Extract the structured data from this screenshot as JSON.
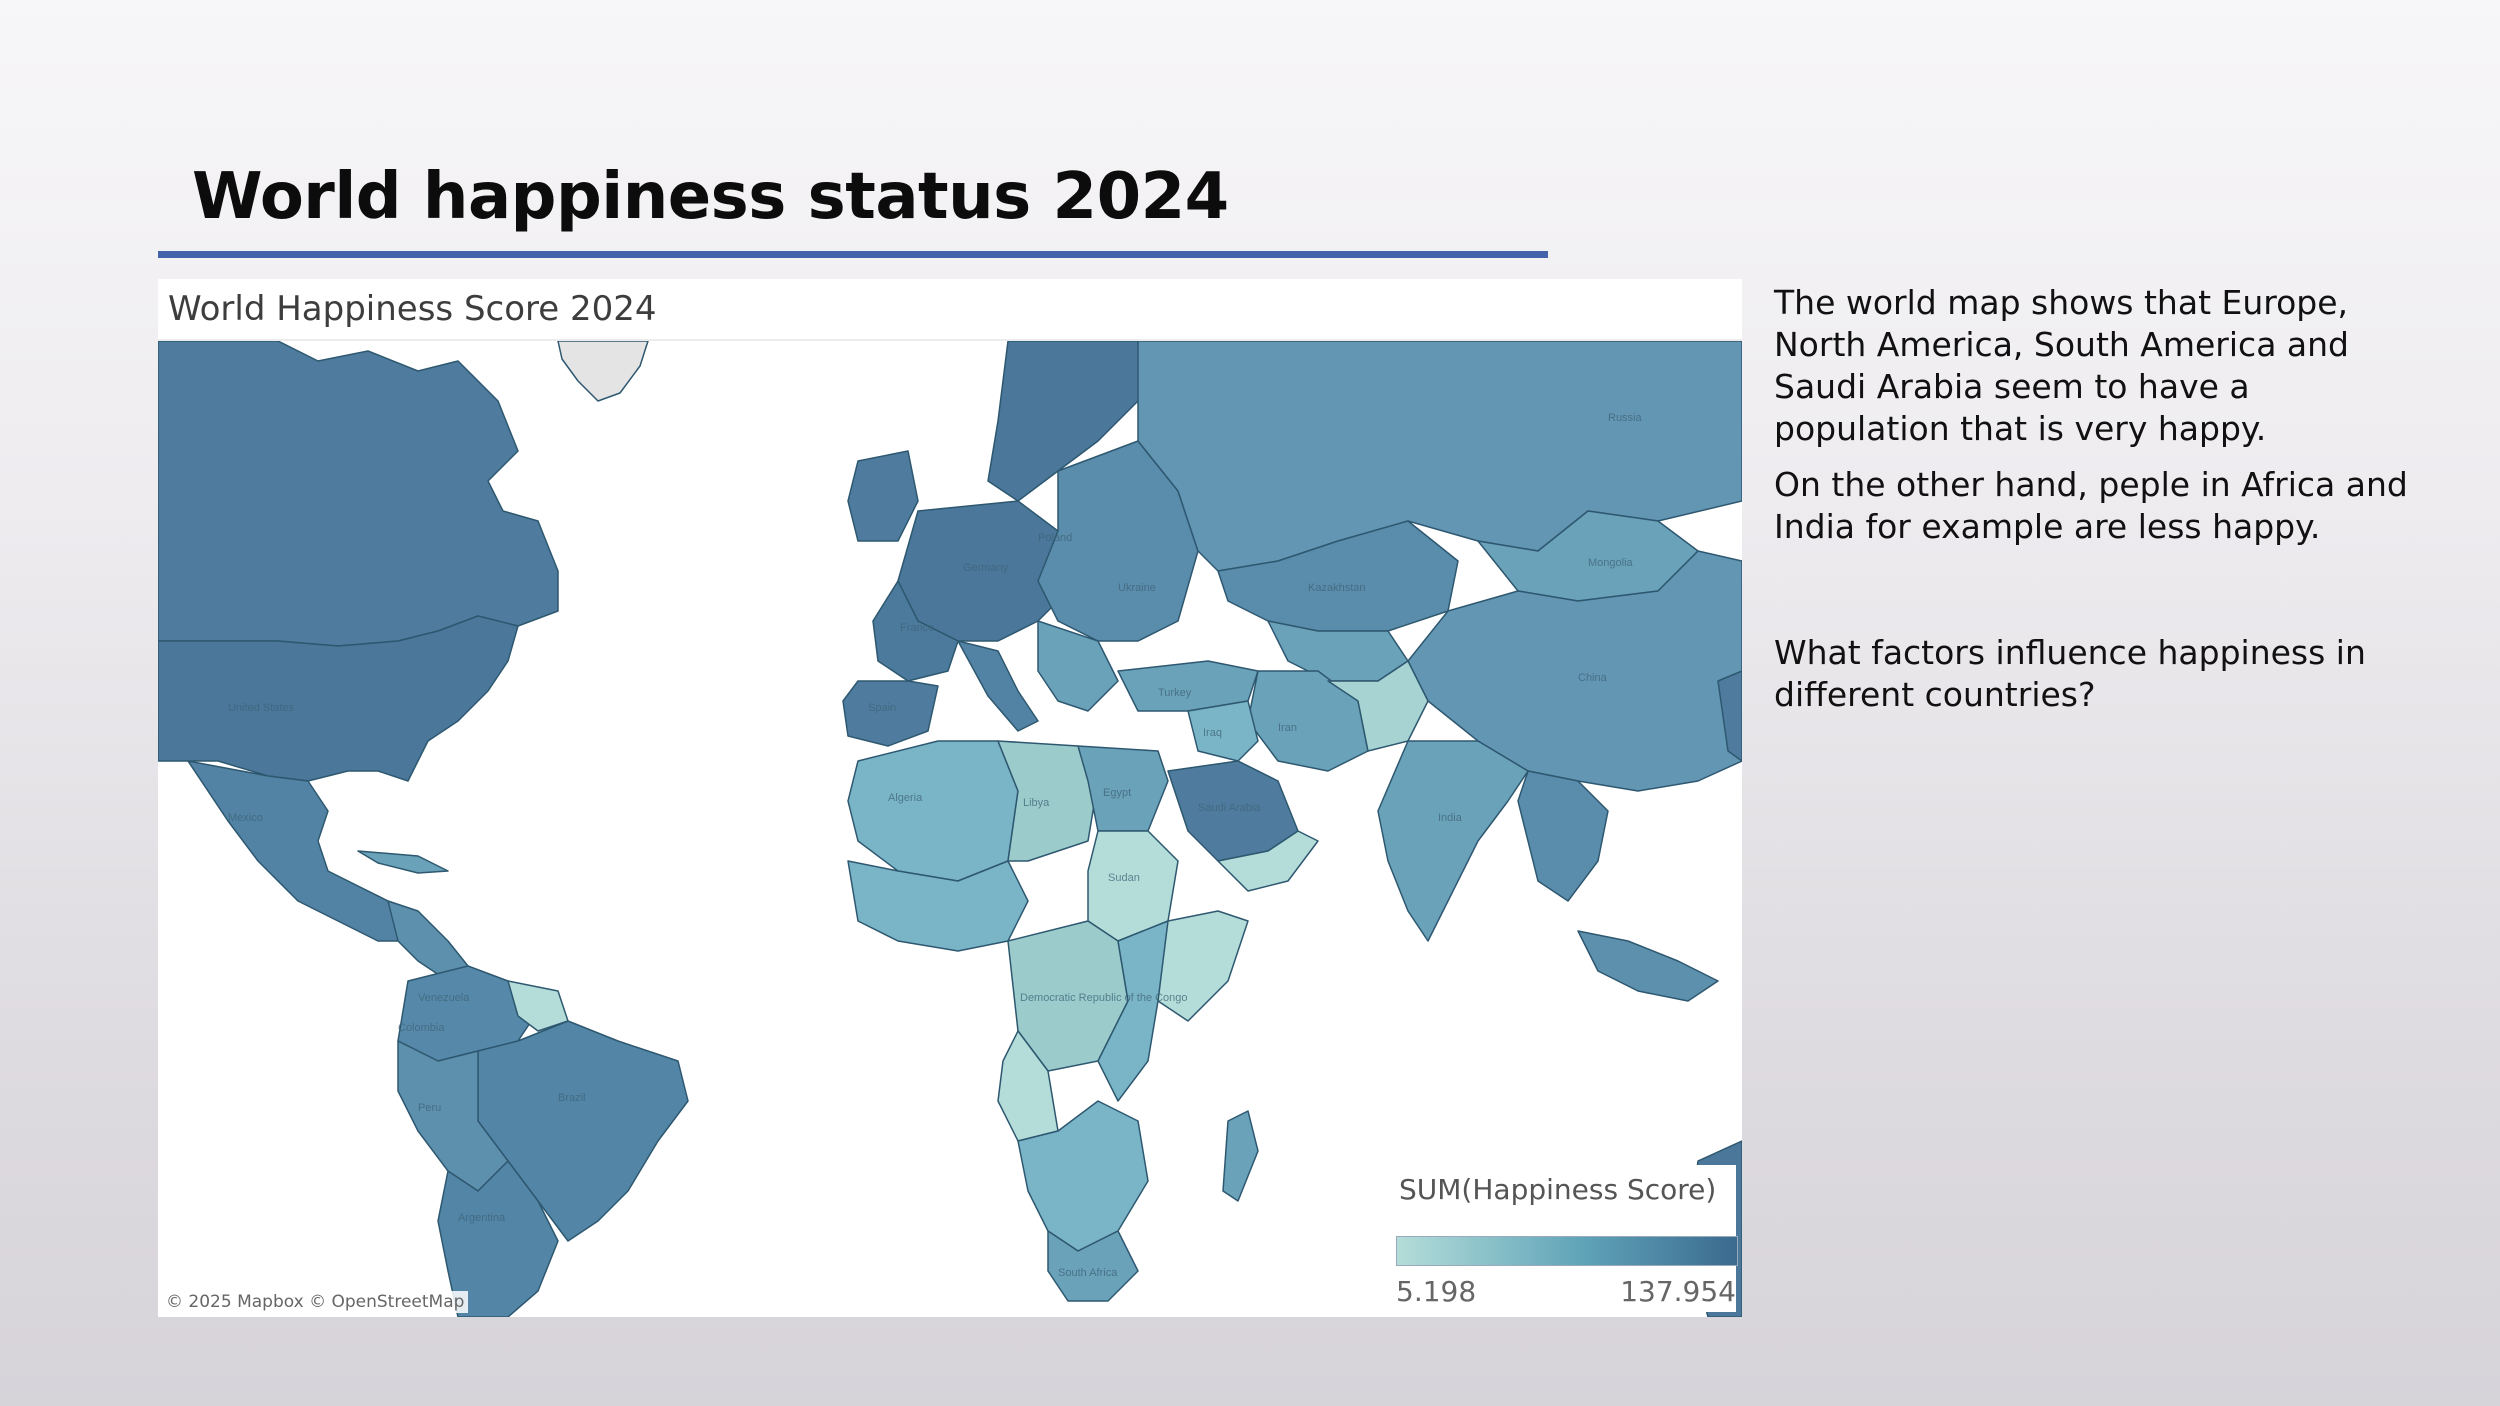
{
  "slide": {
    "title": "World happiness status 2024"
  },
  "map": {
    "title": "World Happiness Score 2024",
    "measure": "SUM(Happiness Score)",
    "legend_min": "5.198",
    "legend_max": "137.954",
    "color_low": "#b4ddd9",
    "color_high": "#3b6a8f",
    "attribution": "© 2025 Mapbox © OpenStreetMap",
    "labels": {
      "united_states": "United States",
      "mexico": "Mexico",
      "brazil": "Brazil",
      "peru": "Peru",
      "argentina": "Argentina",
      "colombia": "Colombia",
      "venezuela": "Venezuela",
      "france": "France",
      "spain": "Spain",
      "germany": "Germany",
      "poland": "Poland",
      "ukraine": "Ukraine",
      "turkey": "Turkey",
      "iran": "Iran",
      "iraq": "Iraq",
      "algeria": "Algeria",
      "libya": "Libya",
      "egypt": "Egypt",
      "sudan": "Sudan",
      "saudi_arabia": "Saudi Arabia",
      "drc": "Democratic Republic of the Congo",
      "south_africa": "South Africa",
      "kazakhstan": "Kazakhstan",
      "mongolia": "Mongolia",
      "china": "China",
      "india": "India",
      "russia": "Russia"
    }
  },
  "text": {
    "para1": "The world map shows that Europe, North America, South America and Saudi Arabia seem to have a population that is very happy.",
    "para2": "On the other hand, peple in Africa and India for example are less happy.",
    "para3": "What factors influence happiness in different countries?"
  }
}
